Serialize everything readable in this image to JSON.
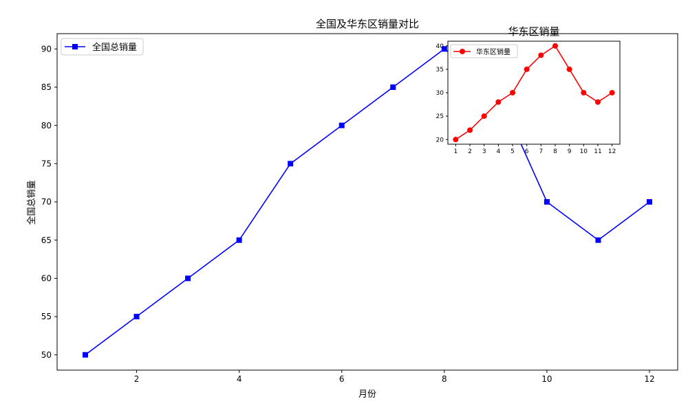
{
  "chart_data": [
    {
      "id": "main",
      "type": "line",
      "title": "全国及华东区销量对比",
      "xlabel": "月份",
      "ylabel": "全国总销量",
      "xlim": [
        0.45,
        12.55
      ],
      "ylim": [
        48,
        92
      ],
      "xticks": [
        2,
        4,
        6,
        8,
        10,
        12
      ],
      "yticks": [
        50,
        55,
        60,
        65,
        70,
        75,
        80,
        85,
        90
      ],
      "grid": false,
      "legend_position": "upper left",
      "x": [
        1,
        2,
        3,
        4,
        5,
        6,
        7,
        8,
        9,
        10,
        11,
        12
      ],
      "series": [
        {
          "name": "全国总销量",
          "color": "#0000ff",
          "marker": "square",
          "values": [
            50,
            55,
            60,
            65,
            75,
            80,
            85,
            90,
            85,
            70,
            65,
            70
          ]
        }
      ]
    },
    {
      "id": "inset",
      "type": "line",
      "title": "华东区销量",
      "xlabel": "",
      "ylabel": "",
      "xlim": [
        0.45,
        12.55
      ],
      "ylim": [
        19,
        41
      ],
      "xticks": [
        1,
        2,
        3,
        4,
        5,
        6,
        7,
        8,
        9,
        10,
        11,
        12
      ],
      "yticks": [
        20,
        25,
        30,
        35,
        40
      ],
      "grid": false,
      "legend_position": "upper left",
      "x": [
        1,
        2,
        3,
        4,
        5,
        6,
        7,
        8,
        9,
        10,
        11,
        12
      ],
      "series": [
        {
          "name": "华东区销量",
          "color": "#ff0000",
          "marker": "circle",
          "values": [
            20,
            22,
            25,
            28,
            30,
            35,
            38,
            40,
            35,
            30,
            28,
            30
          ]
        }
      ]
    }
  ]
}
